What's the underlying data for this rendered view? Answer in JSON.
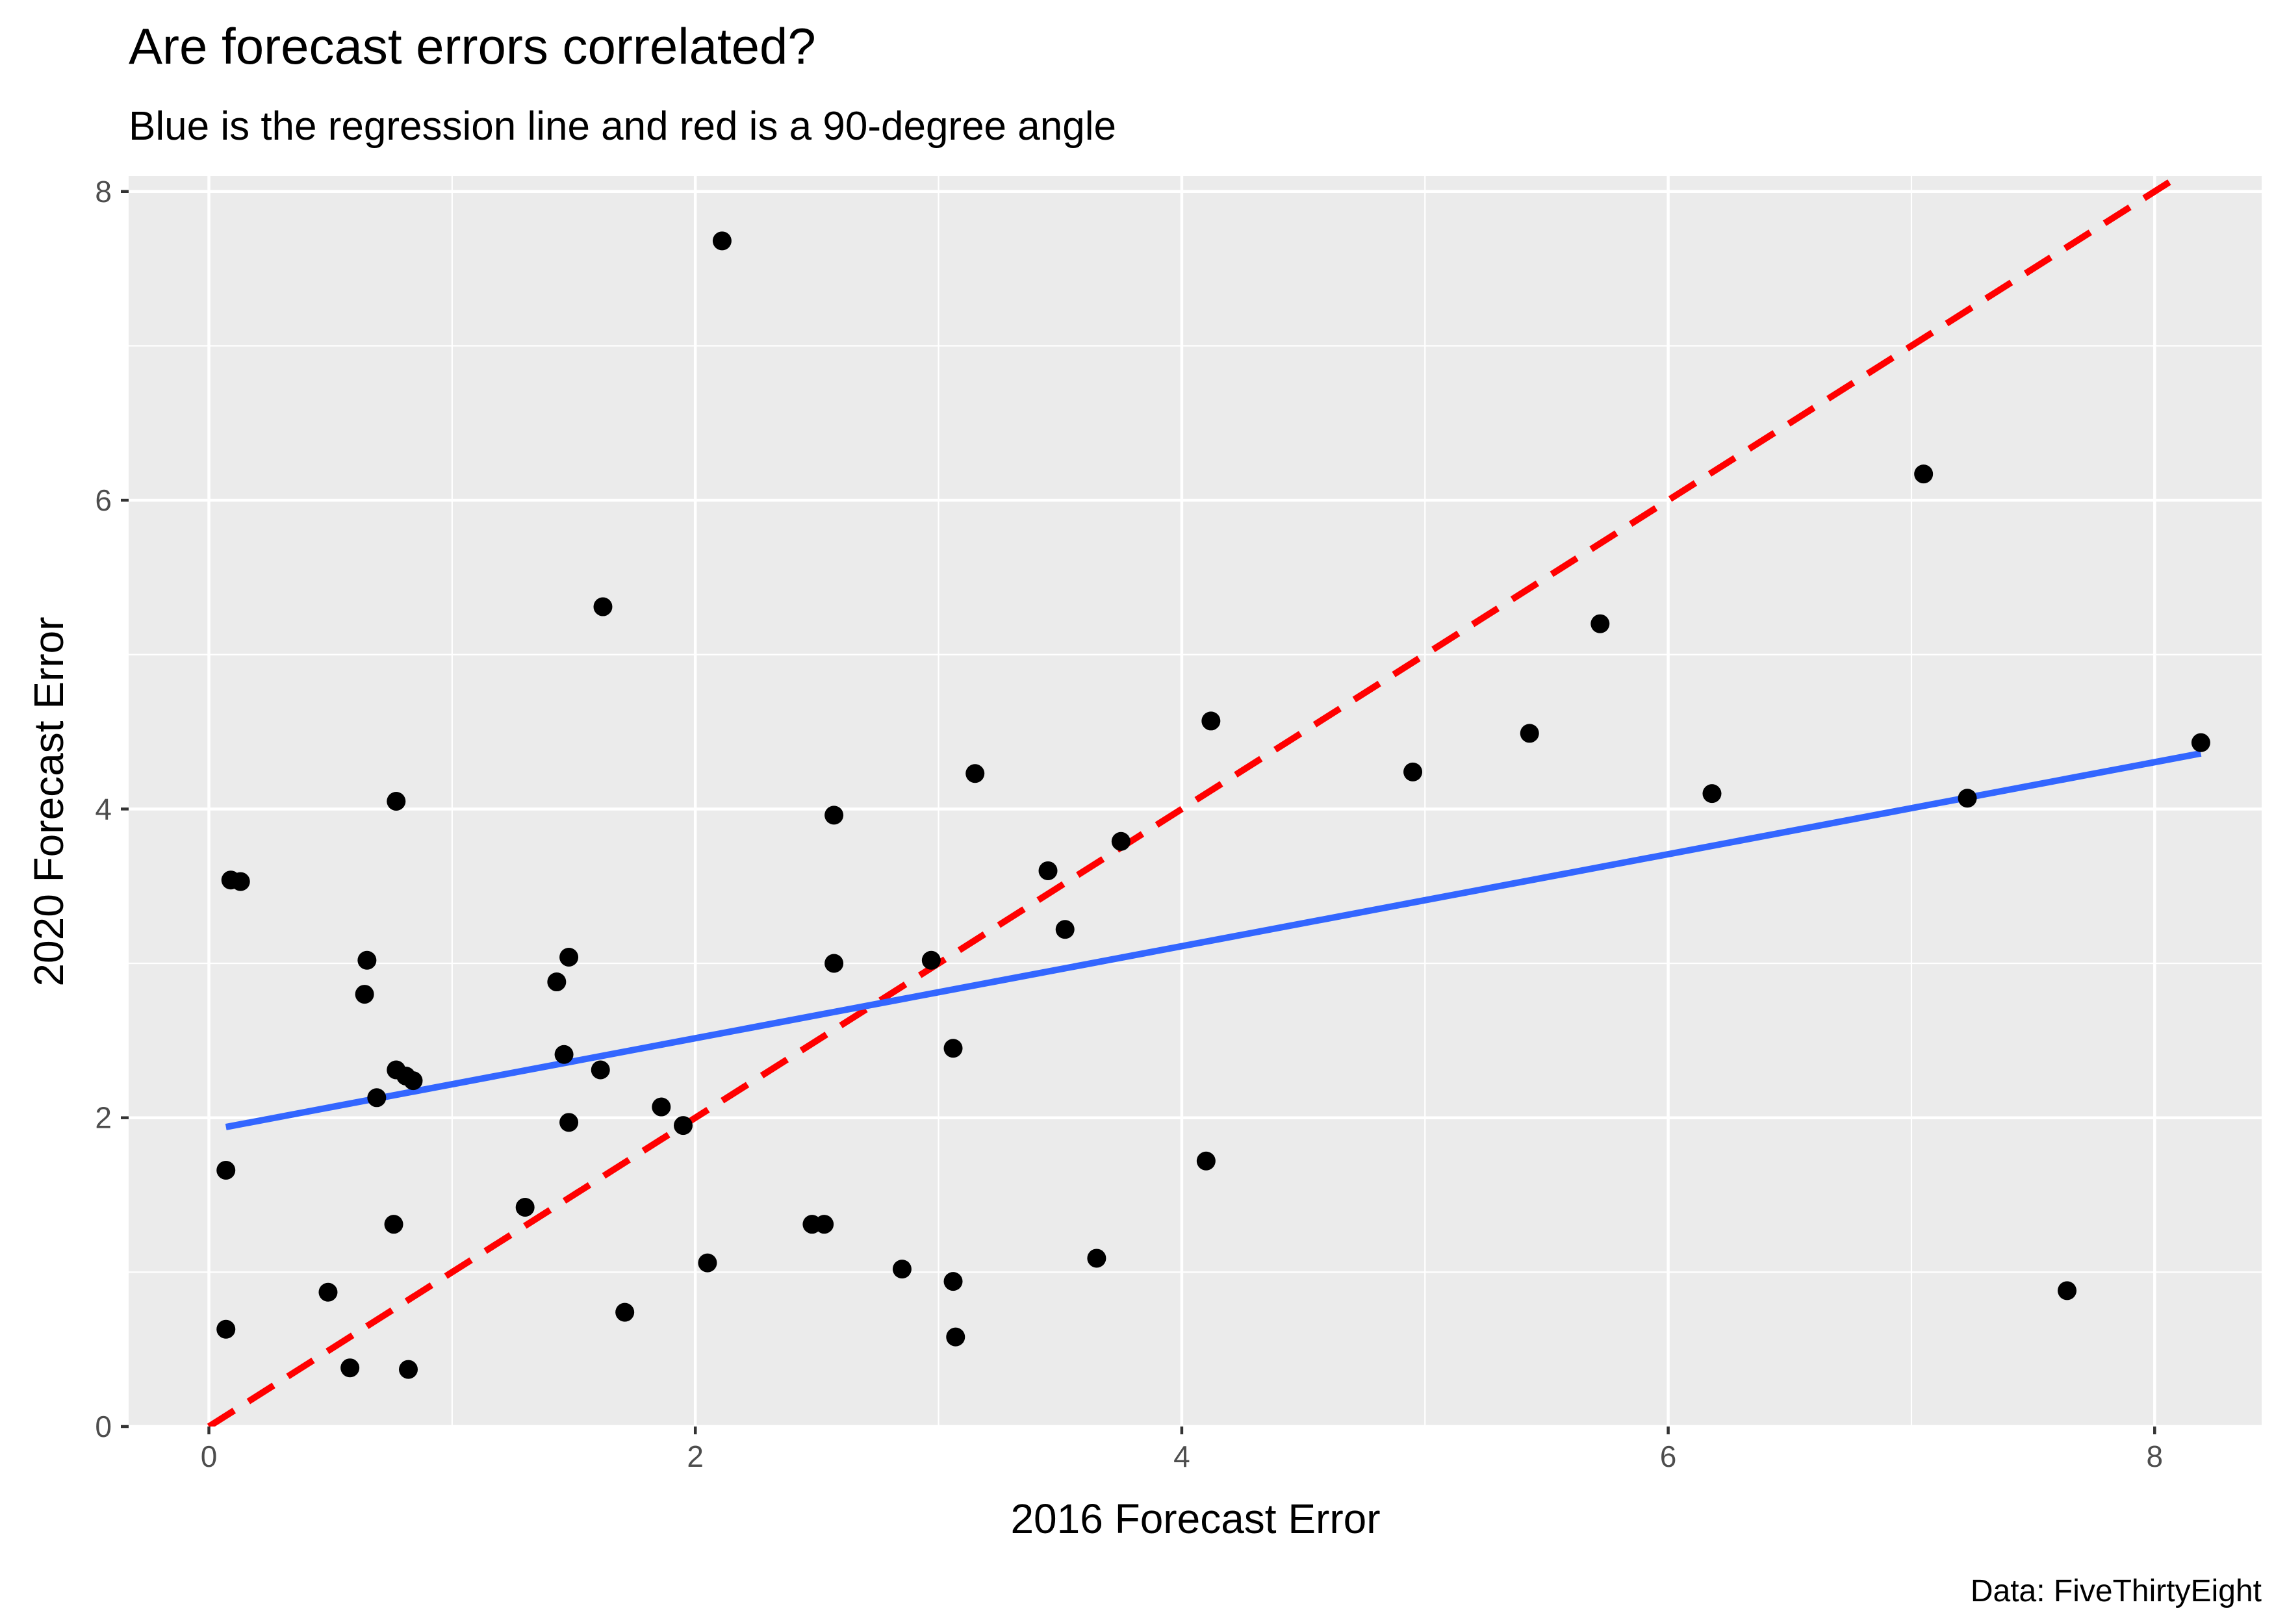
{
  "chart_data": {
    "type": "scatter",
    "title": "Are forecast errors correlated?",
    "subtitle": "Blue is the regression line and red is a 90-degree angle",
    "caption": "Data: FiveThirtyEight",
    "xlabel": "2016 Forecast Error",
    "ylabel": "2020 Forecast Error",
    "xlim": [
      -0.33,
      8.44
    ],
    "ylim": [
      0,
      8.1
    ],
    "x_ticks": [
      0,
      2,
      4,
      6,
      8
    ],
    "y_ticks": [
      0,
      2,
      4,
      6,
      8
    ],
    "x_tick_labels": [
      "0",
      "2",
      "4",
      "6",
      "8"
    ],
    "y_tick_labels": [
      "0",
      "2",
      "4",
      "6",
      "8"
    ],
    "x_minor_ticks": [
      1,
      3,
      5,
      7
    ],
    "y_minor_ticks": [
      1,
      3,
      5,
      7
    ],
    "grid": true,
    "background": "#ebebeb",
    "points": {
      "color": "#000000",
      "x": [
        2.11,
        7.05,
        1.62,
        5.72,
        4.12,
        8.19,
        5.43,
        3.15,
        4.95,
        0.77,
        6.18,
        7.23,
        2.57,
        0.09,
        0.13,
        3.75,
        3.45,
        3.52,
        1.48,
        0.65,
        2.57,
        2.97,
        1.43,
        0.64,
        3.06,
        1.46,
        0.77,
        0.81,
        0.84,
        1.61,
        0.69,
        1.86,
        1.95,
        1.48,
        4.1,
        0.07,
        0.76,
        2.48,
        2.53,
        1.3,
        3.65,
        2.05,
        2.85,
        3.06,
        0.49,
        1.71,
        0.07,
        3.07,
        0.58,
        0.82,
        7.64
      ],
      "y": [
        7.68,
        6.17,
        5.31,
        5.2,
        4.57,
        4.43,
        4.49,
        4.23,
        4.24,
        4.05,
        4.1,
        4.07,
        3.96,
        3.54,
        3.53,
        3.79,
        3.6,
        3.22,
        3.04,
        3.02,
        3.0,
        3.02,
        2.88,
        2.8,
        2.45,
        2.41,
        2.31,
        2.27,
        2.24,
        2.31,
        2.13,
        2.07,
        1.95,
        1.97,
        1.72,
        1.66,
        1.31,
        1.31,
        1.31,
        1.42,
        1.09,
        1.06,
        1.02,
        0.94,
        0.87,
        0.74,
        0.63,
        0.58,
        0.38,
        0.37,
        0.88
      ]
    },
    "regression_line": {
      "color": "#3366ff",
      "x": [
        0.07,
        8.19
      ],
      "y": [
        1.94,
        4.36
      ]
    },
    "reference_line": {
      "color": "#ff0000",
      "style": "dashed",
      "x": [
        0.0,
        8.1
      ],
      "y": [
        0.0,
        8.1
      ]
    }
  }
}
